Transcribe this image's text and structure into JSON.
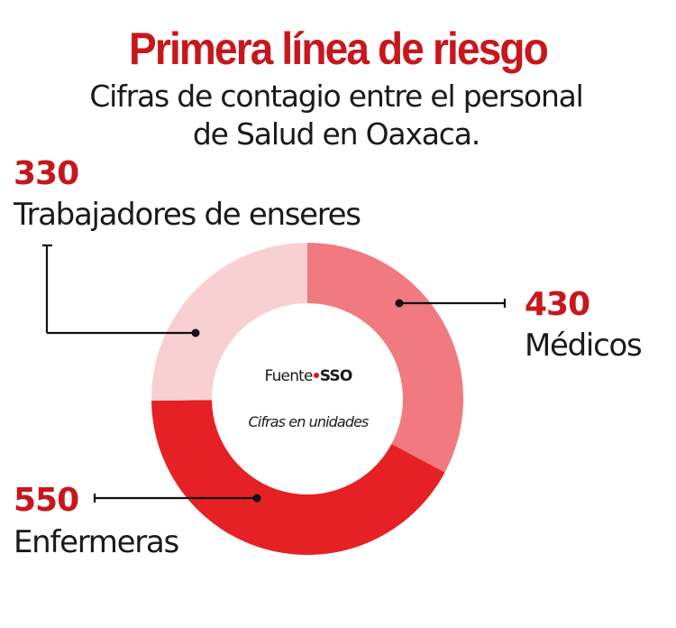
{
  "header": {
    "title": "Primera línea de riesgo",
    "subtitle_line1": "Cifras de contagio entre el personal",
    "subtitle_line2": "de Salud en Oaxaca."
  },
  "center": {
    "source_label": "Fuente",
    "source_name": "SSO",
    "note": "Cifras en unidades"
  },
  "labels": {
    "trabajadores": {
      "value": "330",
      "name": "Trabajadores de enseres"
    },
    "medicos": {
      "value": "430",
      "name": "Médicos"
    },
    "enfermeras": {
      "value": "550",
      "name": "Enfermeras"
    }
  },
  "colors": {
    "title": "#c8161d",
    "value": "#c8161d",
    "medicos": "#f07a80",
    "enfermeras": "#e52125",
    "trabajadores": "#f9d0d2",
    "leader": "#111111"
  },
  "chart_data": {
    "type": "pie",
    "variant": "donut",
    "title": "Primera línea de riesgo",
    "subtitle": "Cifras de contagio entre el personal de Salud en Oaxaca.",
    "categories": [
      "Médicos",
      "Enfermeras",
      "Trabajadores de enseres"
    ],
    "values": [
      430,
      550,
      330
    ],
    "colors": [
      "#f07a80",
      "#e52125",
      "#f9d0d2"
    ],
    "start_angle_deg": 0,
    "direction": "clockwise",
    "units": "unidades",
    "source": "SSO",
    "annotations": [
      "Fuente • SSO",
      "Cifras en unidades"
    ]
  }
}
